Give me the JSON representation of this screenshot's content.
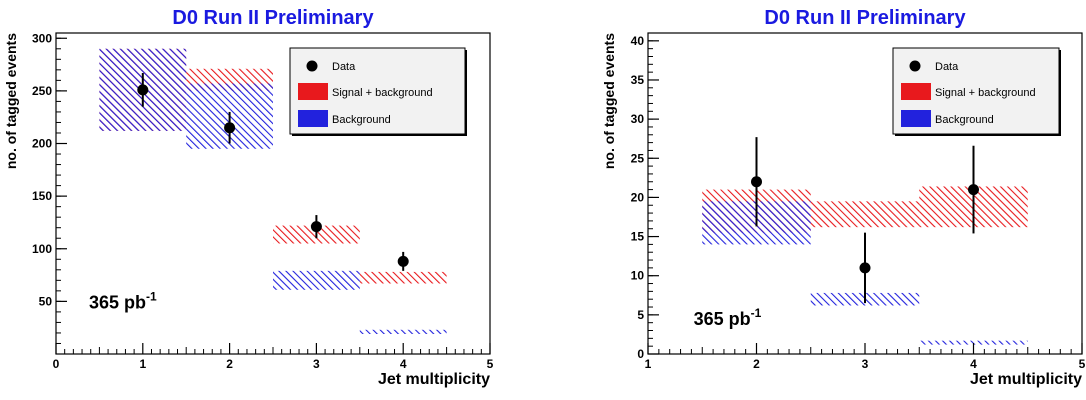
{
  "colors": {
    "signal_bg": "#e8191d",
    "background": "#2222dd",
    "title": "#1a1ae0",
    "data": "#000000",
    "legend_bg": "#f2f2f2"
  },
  "legend": {
    "data_label": "Data",
    "signal_label": "Signal + background",
    "background_label": "Background"
  },
  "chart_data": [
    {
      "type": "scatter",
      "title": "D0 Run II Preliminary",
      "xlabel": "Jet multiplicity",
      "ylabel": "no. of tagged events",
      "xlim": [
        0,
        5
      ],
      "ylim": [
        0,
        305
      ],
      "xticks": [
        "0",
        "1",
        "2",
        "3",
        "4",
        "5"
      ],
      "yticks": [
        "50",
        "100",
        "150",
        "200",
        "250",
        "300"
      ],
      "ytick_values": [
        50,
        100,
        150,
        200,
        250,
        300
      ],
      "lumi_label": "365 pb",
      "lumi_exponent": "-1",
      "legend_position": "top-right",
      "series": [
        {
          "name": "Signal + background",
          "kind": "band",
          "bins": [
            {
              "x0": 0.5,
              "x1": 1.5,
              "low": 212,
              "high": 290
            },
            {
              "x0": 1.5,
              "x1": 2.5,
              "low": 250,
              "high": 271
            },
            {
              "x0": 2.5,
              "x1": 3.5,
              "low": 105,
              "high": 122
            },
            {
              "x0": 3.5,
              "x1": 4.5,
              "low": 67,
              "high": 78
            }
          ]
        },
        {
          "name": "Background",
          "kind": "band",
          "bins": [
            {
              "x0": 0.5,
              "x1": 1.5,
              "low": 212,
              "high": 290
            },
            {
              "x0": 1.5,
              "x1": 2.5,
              "low": 195,
              "high": 257
            },
            {
              "x0": 2.5,
              "x1": 3.5,
              "low": 61,
              "high": 79
            },
            {
              "x0": 3.5,
              "x1": 4.5,
              "low": 19,
              "high": 23
            }
          ]
        },
        {
          "name": "Data",
          "kind": "points",
          "x": [
            1,
            2,
            3,
            4
          ],
          "y": [
            251,
            215,
            121,
            88
          ],
          "err": [
            16,
            15,
            11,
            9
          ]
        }
      ]
    },
    {
      "type": "scatter",
      "title": "D0 Run II Preliminary",
      "xlabel": "Jet multiplicity",
      "ylabel": "no. of tagged events",
      "xlim": [
        1,
        5
      ],
      "ylim": [
        0,
        41
      ],
      "xticks": [
        "1",
        "2",
        "3",
        "4",
        "5"
      ],
      "yticks": [
        "0",
        "5",
        "10",
        "15",
        "20",
        "25",
        "30",
        "35",
        "40"
      ],
      "ytick_values": [
        0,
        5,
        10,
        15,
        20,
        25,
        30,
        35,
        40
      ],
      "lumi_label": "365 pb",
      "lumi_exponent": "-1",
      "legend_position": "top-right",
      "series": [
        {
          "name": "Signal + background",
          "kind": "band",
          "bins": [
            {
              "x0": 1.5,
              "x1": 2.5,
              "low": 15.5,
              "high": 21
            },
            {
              "x0": 2.5,
              "x1": 3.5,
              "low": 16.2,
              "high": 19.5
            },
            {
              "x0": 3.5,
              "x1": 4.5,
              "low": 16.2,
              "high": 21.4
            }
          ]
        },
        {
          "name": "Background",
          "kind": "band",
          "bins": [
            {
              "x0": 1.5,
              "x1": 2.5,
              "low": 14,
              "high": 19.5
            },
            {
              "x0": 2.5,
              "x1": 3.5,
              "low": 6.2,
              "high": 7.8
            },
            {
              "x0": 3.5,
              "x1": 4.5,
              "low": 1.2,
              "high": 1.7
            }
          ]
        },
        {
          "name": "Data",
          "kind": "points",
          "x": [
            2,
            3,
            4
          ],
          "y": [
            22,
            11,
            21
          ],
          "err": [
            5.7,
            4.5,
            5.6
          ]
        }
      ]
    }
  ]
}
